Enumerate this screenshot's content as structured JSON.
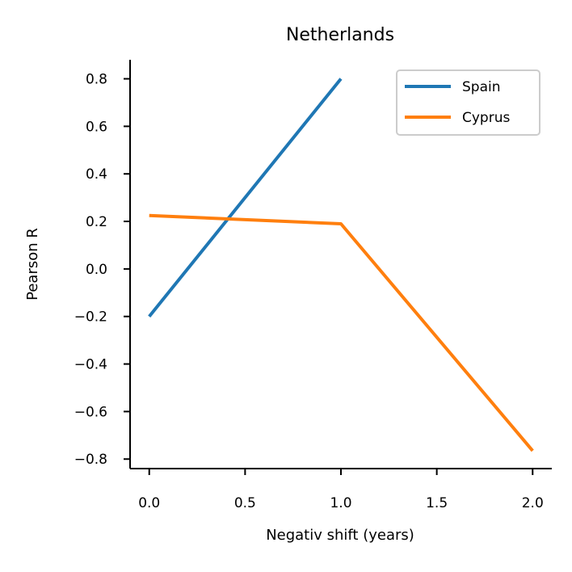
{
  "chart_data": {
    "type": "line",
    "title": "Netherlands",
    "xlabel": "Negativ shift (years)",
    "ylabel": "Pearson R",
    "xlim": [
      -0.1,
      2.1
    ],
    "ylim": [
      -0.84,
      0.88
    ],
    "xticks": [
      0.0,
      0.5,
      1.0,
      1.5,
      2.0
    ],
    "xtick_labels": [
      "0.0",
      "0.5",
      "1.0",
      "1.5",
      "2.0"
    ],
    "yticks": [
      0.8,
      0.6,
      0.4,
      0.2,
      0.0,
      -0.2,
      -0.4,
      -0.6,
      -0.8
    ],
    "ytick_labels": [
      "0.8",
      "0.6",
      "0.4",
      "0.2",
      "0.0",
      "−0.2",
      "−0.4",
      "−0.6",
      "−0.8"
    ],
    "grid": false,
    "legend_position": "top-right",
    "series": [
      {
        "name": "Spain",
        "color": "#1f77b4",
        "x": [
          0,
          1
        ],
        "y": [
          -0.2,
          0.8
        ]
      },
      {
        "name": "Cyprus",
        "color": "#ff7f0e",
        "x": [
          0,
          1,
          2
        ],
        "y": [
          0.225,
          0.19,
          -0.765
        ]
      }
    ]
  }
}
